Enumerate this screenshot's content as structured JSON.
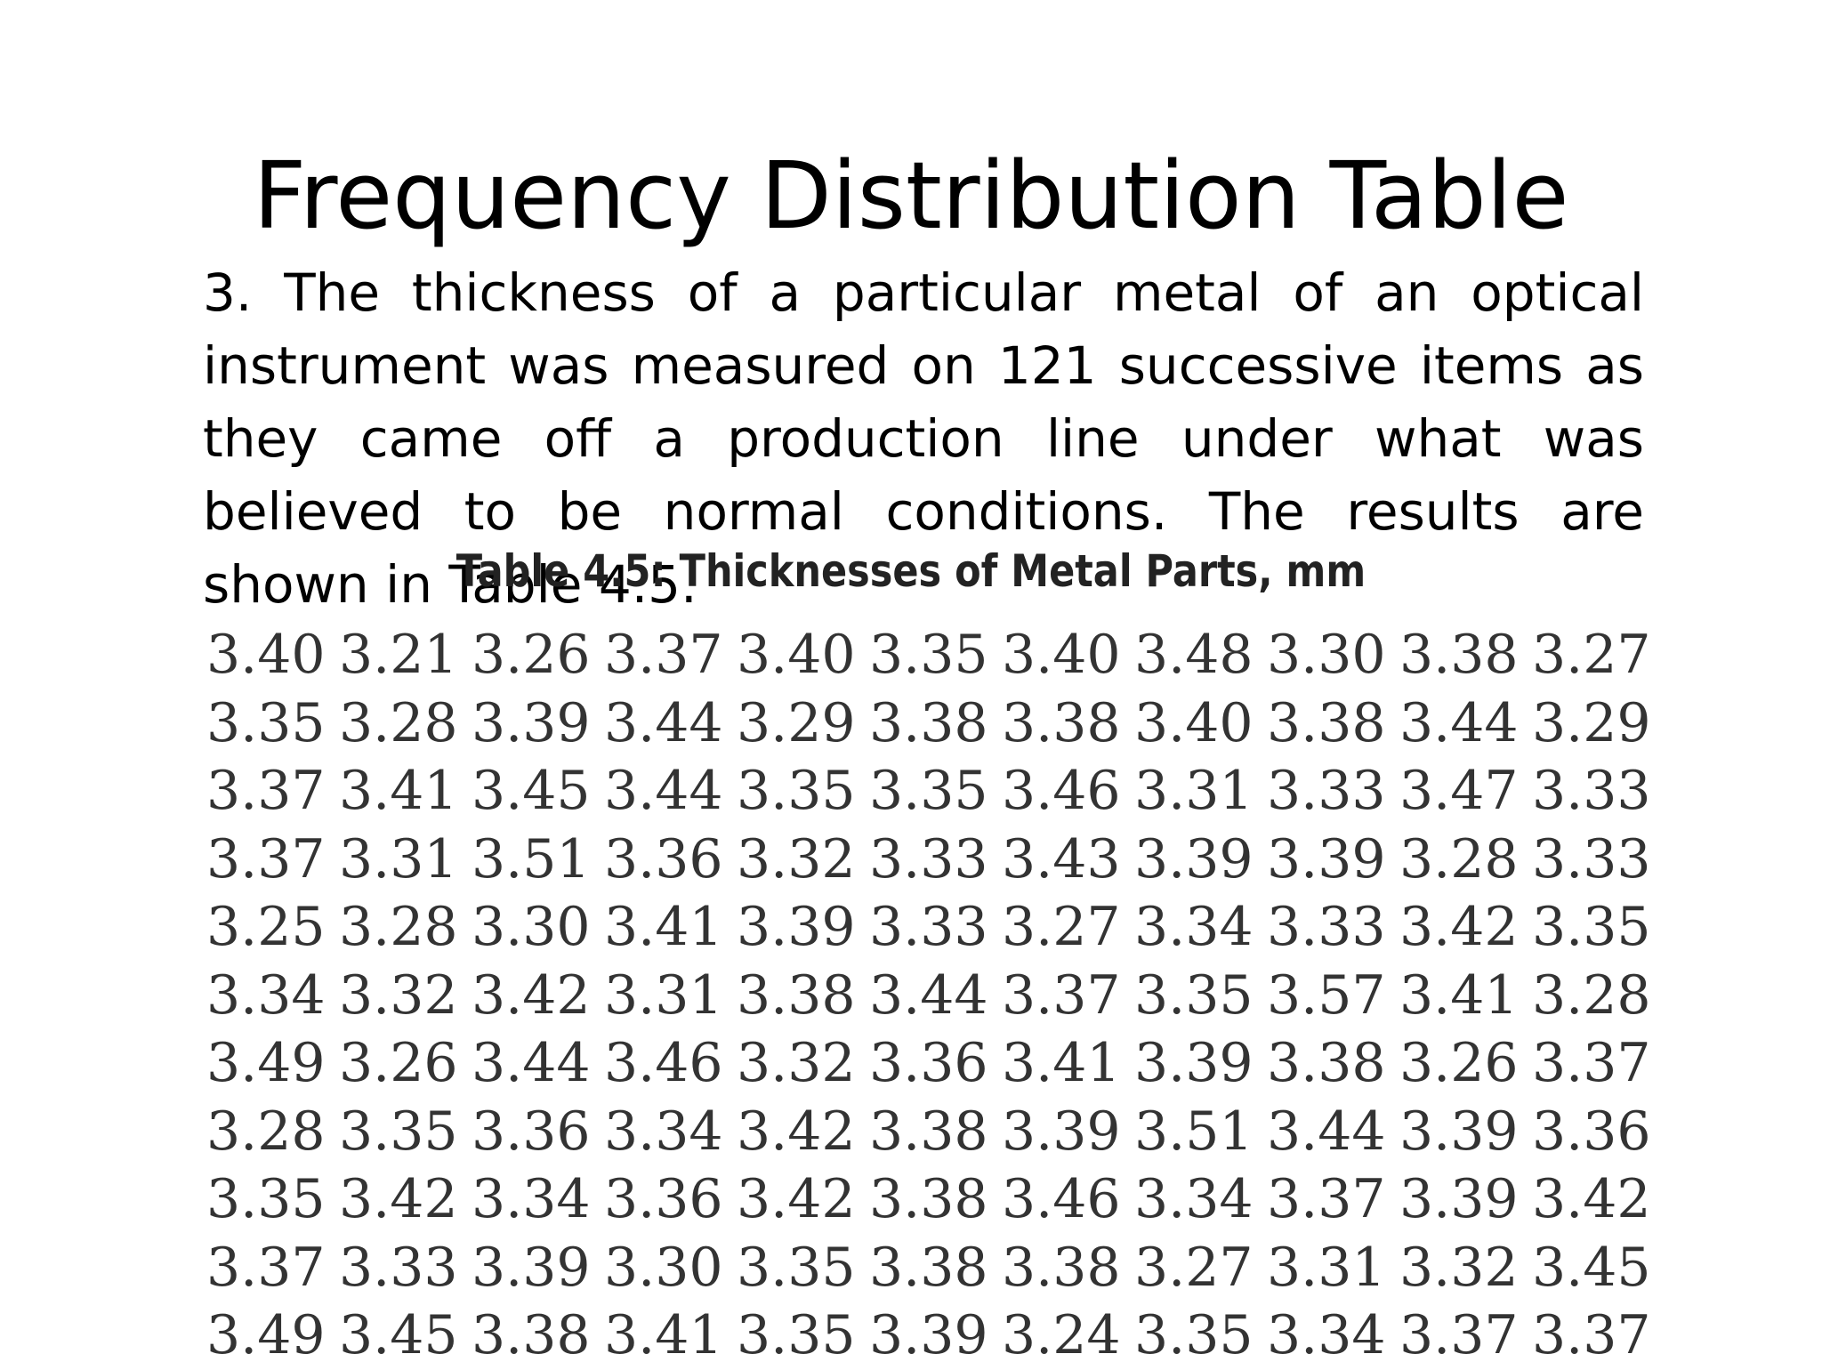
{
  "title": "Frequency Distribution Table",
  "problem": "3. The thickness of a particular metal of an optical instrument was measured on 121 successive items as they came off a production line under what was  believed to be normal conditions. The results are shown in Table 4.5.",
  "table": {
    "caption": "Table 4.5:  Thicknesses of Metal Parts, mm",
    "rows": [
      [
        "3.40",
        "3.21",
        "3.26",
        "3.37",
        "3.40",
        "3.35",
        "3.40",
        "3.48",
        "3.30",
        "3.38",
        "3.27"
      ],
      [
        "3.35",
        "3.28",
        "3.39",
        "3.44",
        "3.29",
        "3.38",
        "3.38",
        "3.40",
        "3.38",
        "3.44",
        "3.29"
      ],
      [
        "3.37",
        "3.41",
        "3.45",
        "3.44",
        "3.35",
        "3.35",
        "3.46",
        "3.31",
        "3.33",
        "3.47",
        "3.33"
      ],
      [
        "3.37",
        "3.31",
        "3.51",
        "3.36",
        "3.32",
        "3.33",
        "3.43",
        "3.39",
        "3.39",
        "3.28",
        "3.33"
      ],
      [
        "3.25",
        "3.28",
        "3.30",
        "3.41",
        "3.39",
        "3.33",
        "3.27",
        "3.34",
        "3.33",
        "3.42",
        "3.35"
      ],
      [
        "3.34",
        "3.32",
        "3.42",
        "3.31",
        "3.38",
        "3.44",
        "3.37",
        "3.35",
        "3.57",
        "3.41",
        "3.28"
      ],
      [
        "3.49",
        "3.26",
        "3.44",
        "3.46",
        "3.32",
        "3.36",
        "3.41",
        "3.39",
        "3.38",
        "3.26",
        "3.37"
      ],
      [
        "3.28",
        "3.35",
        "3.36",
        "3.34",
        "3.42",
        "3.38",
        "3.39",
        "3.51",
        "3.44",
        "3.39",
        "3.36"
      ],
      [
        "3.35",
        "3.42",
        "3.34",
        "3.36",
        "3.42",
        "3.38",
        "3.46",
        "3.34",
        "3.37",
        "3.39",
        "3.42"
      ],
      [
        "3.37",
        "3.33",
        "3.39",
        "3.30",
        "3.35",
        "3.38",
        "3.38",
        "3.27",
        "3.31",
        "3.32",
        "3.45"
      ],
      [
        "3.49",
        "3.45",
        "3.38",
        "3.41",
        "3.35",
        "3.39",
        "3.24",
        "3.35",
        "3.34",
        "3.37",
        "3.37"
      ]
    ]
  }
}
